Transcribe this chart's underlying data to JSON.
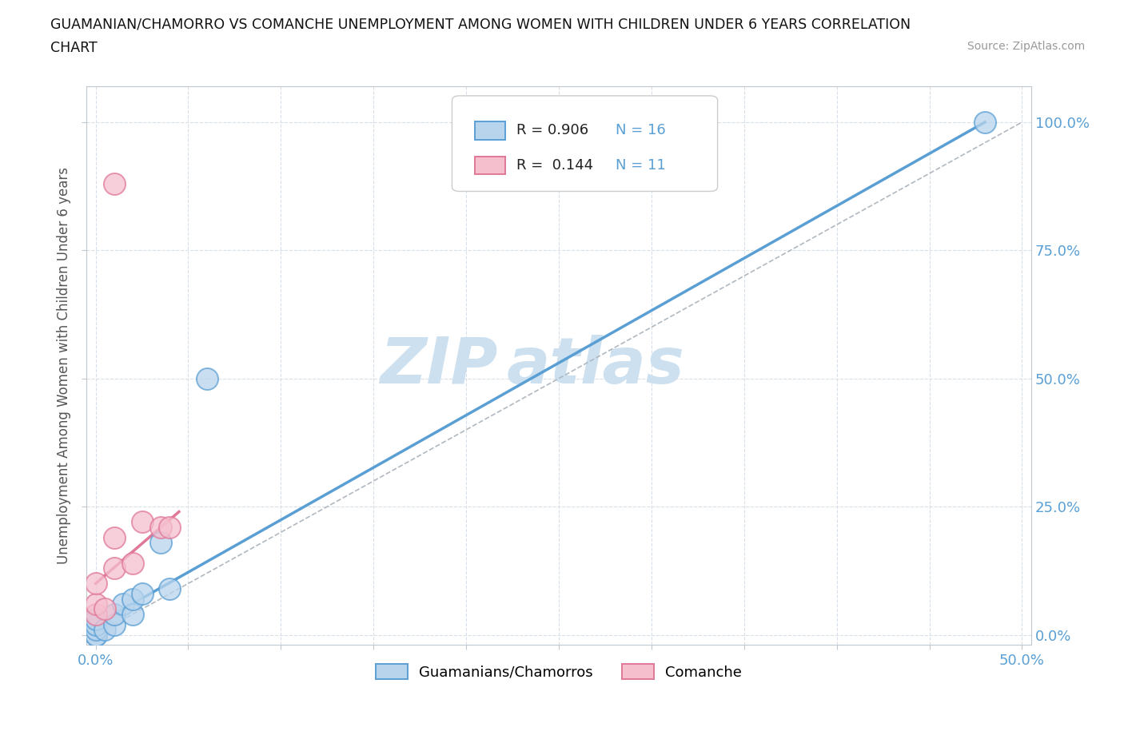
{
  "title_line1": "GUAMANIAN/CHAMORRO VS COMANCHE UNEMPLOYMENT AMONG WOMEN WITH CHILDREN UNDER 6 YEARS CORRELATION",
  "title_line2": "CHART",
  "source": "Source: ZipAtlas.com",
  "ylabel": "Unemployment Among Women with Children Under 6 years",
  "xlim": [
    -0.005,
    0.505
  ],
  "ylim": [
    -0.02,
    1.07
  ],
  "yticks": [
    0.0,
    0.25,
    0.5,
    0.75,
    1.0
  ],
  "ytick_labels": [
    "0.0%",
    "25.0%",
    "50.0%",
    "75.0%",
    "100.0%"
  ],
  "xtick_positions": [
    0.0,
    0.05,
    0.1,
    0.15,
    0.2,
    0.25,
    0.3,
    0.35,
    0.4,
    0.45,
    0.5
  ],
  "xtick_labels": [
    "0.0%",
    "",
    "",
    "",
    "",
    "",
    "",
    "",
    "",
    "",
    "50.0%"
  ],
  "blue_fill": "#b8d4ed",
  "blue_edge": "#5a9fd4",
  "pink_fill": "#f5bfce",
  "pink_edge": "#e07898",
  "blue_line": "#5a9fd4",
  "pink_line": "#e07898",
  "dash_line": "#b0b8c0",
  "tick_color": "#5a9fd4",
  "grid_color": "#d8dfe8",
  "spine_color": "#c0c8d0",
  "blue_scatter_x": [
    0.0,
    0.0,
    0.0,
    0.0,
    0.0,
    0.005,
    0.01,
    0.01,
    0.015,
    0.02,
    0.02,
    0.025,
    0.035,
    0.04,
    0.06,
    0.48
  ],
  "blue_scatter_y": [
    0.0,
    0.0,
    0.01,
    0.02,
    0.03,
    0.01,
    0.02,
    0.04,
    0.06,
    0.04,
    0.07,
    0.08,
    0.18,
    0.09,
    0.5,
    1.0
  ],
  "pink_scatter_x": [
    0.0,
    0.0,
    0.0,
    0.005,
    0.01,
    0.01,
    0.02,
    0.025,
    0.035,
    0.04,
    0.01
  ],
  "pink_scatter_y": [
    0.04,
    0.06,
    0.1,
    0.05,
    0.13,
    0.19,
    0.14,
    0.22,
    0.21,
    0.21,
    0.88
  ],
  "blue_line_x": [
    0.0,
    0.48
  ],
  "blue_line_y": [
    0.02,
    1.0
  ],
  "pink_line_x": [
    0.0,
    0.045
  ],
  "pink_line_y": [
    0.1,
    0.24
  ],
  "dash_line_x": [
    0.0,
    0.5
  ],
  "dash_line_y": [
    0.0,
    1.0
  ],
  "R_blue": 0.906,
  "N_blue": 16,
  "R_pink": 0.144,
  "N_pink": 11,
  "bg": "#ffffff",
  "watermark_zip": "#cce0f0",
  "watermark_atlas": "#cce0f0"
}
